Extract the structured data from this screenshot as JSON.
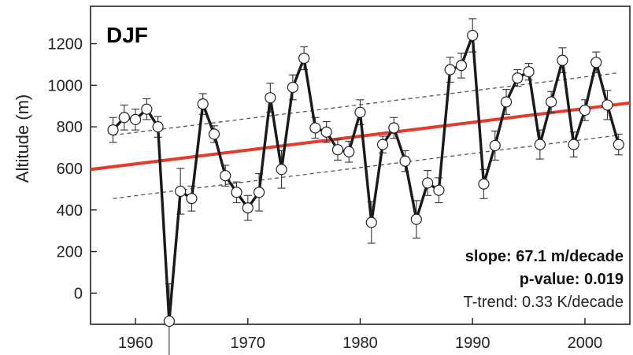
{
  "chart_data": {
    "type": "line",
    "panel_label": "DJF",
    "ylabel": "Altitude (m)",
    "xlabel": "",
    "xlim": [
      1956,
      2004
    ],
    "ylim": [
      -150,
      1380
    ],
    "xticks": [
      1960,
      1970,
      1980,
      1990,
      2000
    ],
    "yticks": [
      0,
      200,
      400,
      600,
      800,
      1000,
      1200
    ],
    "grid": false,
    "legend": "none",
    "series": [
      {
        "color": "#1a1a1a",
        "marker": "open-circle",
        "x": [
          1958,
          1959,
          1960,
          1961,
          1962,
          1963,
          1964,
          1965,
          1966,
          1967,
          1968,
          1969,
          1970,
          1971,
          1972,
          1973,
          1974,
          1975,
          1976,
          1977,
          1978,
          1979,
          1980,
          1981,
          1982,
          1983,
          1984,
          1985,
          1986,
          1987,
          1988,
          1989,
          1990,
          1991,
          1992,
          1993,
          1994,
          1995,
          1996,
          1997,
          1998,
          1999,
          2000,
          2001,
          2002,
          2003
        ],
        "y": [
          785,
          845,
          835,
          885,
          800,
          -135,
          490,
          455,
          910,
          765,
          565,
          485,
          410,
          485,
          940,
          595,
          990,
          1130,
          795,
          775,
          690,
          680,
          870,
          340,
          715,
          795,
          635,
          355,
          530,
          495,
          1075,
          1095,
          1240,
          525,
          710,
          920,
          1035,
          1065,
          715,
          920,
          1120,
          715,
          880,
          1110,
          905,
          715
        ],
        "error": [
          60,
          60,
          50,
          50,
          50,
          180,
          110,
          60,
          50,
          40,
          50,
          50,
          60,
          90,
          70,
          90,
          60,
          55,
          50,
          50,
          50,
          50,
          60,
          100,
          40,
          50,
          50,
          90,
          60,
          60,
          60,
          60,
          80,
          70,
          70,
          60,
          40,
          40,
          70,
          50,
          60,
          60,
          50,
          50,
          70,
          50
        ]
      }
    ],
    "trend": {
      "color": "#e53b2c",
      "x": [
        1956,
        2004
      ],
      "y": [
        595,
        915
      ]
    },
    "confidence_band": {
      "color": "#555555",
      "style": "dashed",
      "upper": {
        "x": [
          1958,
          2003
        ],
        "y": [
          760,
          1060
        ]
      },
      "lower": {
        "x": [
          1958,
          2003
        ],
        "y": [
          455,
          760
        ]
      }
    },
    "annotations": [
      {
        "text": "slope: 67.1 m/decade",
        "bold": true
      },
      {
        "text": "p-value: 0.019",
        "bold": true
      },
      {
        "text": "T-trend: 0.33 K/decade",
        "bold": false
      }
    ]
  }
}
